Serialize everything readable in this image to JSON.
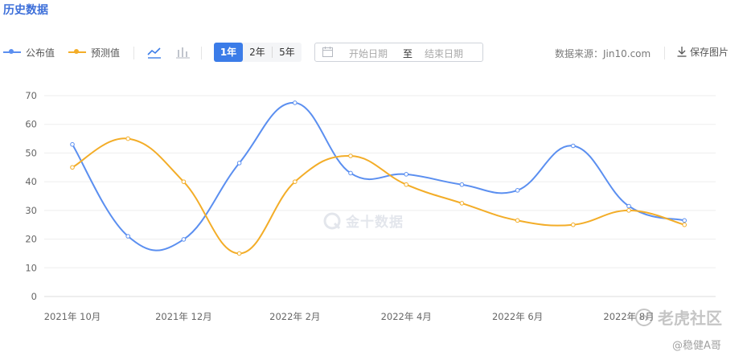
{
  "title": "历史数据",
  "legend": [
    {
      "label": "公布值",
      "color": "#5b8ff0"
    },
    {
      "label": "预测值",
      "color": "#f3ad28"
    }
  ],
  "chart_type_toggle": {
    "line_icon": "line-chart-icon",
    "bar_icon": "bar-chart-icon",
    "active": "line"
  },
  "range_buttons": [
    {
      "label": "1年",
      "active": true
    },
    {
      "label": "2年",
      "active": false
    },
    {
      "label": "5年",
      "active": false
    }
  ],
  "date_picker": {
    "start_placeholder": "开始日期",
    "separator": "至",
    "end_placeholder": "结束日期"
  },
  "source_text": "数据来源：Jin10.com",
  "save_label": "保存图片",
  "watermark": {
    "center": "金十数据",
    "corner": "老虎社区",
    "corner_user": "@稳健A哥"
  },
  "chart_data": {
    "type": "line",
    "smooth": true,
    "ylim": [
      0,
      70
    ],
    "yticks": [
      0,
      10,
      20,
      30,
      40,
      50,
      60,
      70
    ],
    "x_tick_labels": [
      "2021年 10月",
      "2021年 12月",
      "2022年 2月",
      "2022年 4月",
      "2022年 6月",
      "2022年 8月"
    ],
    "x_tick_label_index": [
      0,
      2,
      4,
      6,
      8,
      10
    ],
    "grid": true,
    "series": [
      {
        "name": "公布值",
        "color": "#5b8ff0",
        "values": [
          53,
          21,
          19.9,
          46.5,
          67.5,
          43,
          42.6,
          39,
          37,
          52.5,
          31.5,
          26.5
        ]
      },
      {
        "name": "预测值",
        "color": "#f3ad28",
        "values": [
          45,
          55,
          40,
          15,
          40,
          49,
          39,
          32.5,
          26.5,
          25,
          30,
          25
        ]
      }
    ]
  }
}
